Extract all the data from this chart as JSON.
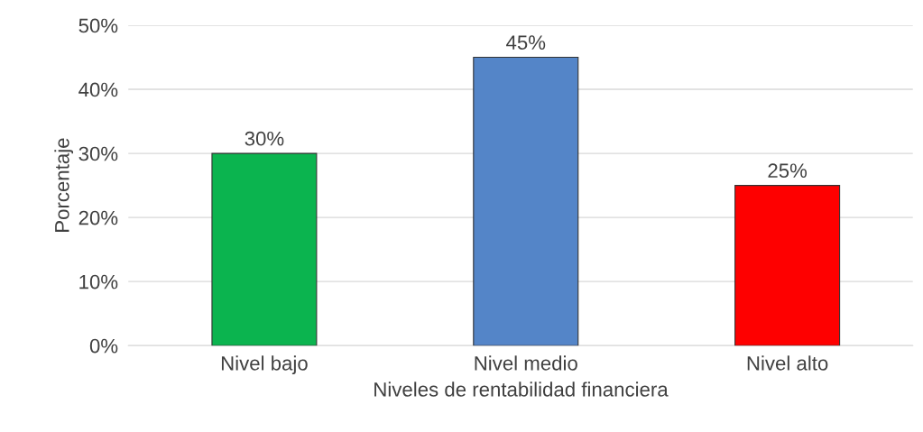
{
  "chart_data": {
    "type": "bar",
    "xlabel": "Niveles de rentabilidad financiera",
    "ylabel": "Porcentaje",
    "categories": [
      "Nivel bajo",
      "Nivel medio",
      "Nivel alto"
    ],
    "values": [
      30,
      45,
      25
    ],
    "colors": [
      "#0bb44f",
      "#5485c8",
      "#fe0000"
    ],
    "value_labels": [
      "30%",
      "45%",
      "25%"
    ],
    "ylim": [
      0,
      50
    ],
    "yticks": [
      {
        "value": 0,
        "label": "0%"
      },
      {
        "value": 10,
        "label": "10%"
      },
      {
        "value": 20,
        "label": "20%"
      },
      {
        "value": 30,
        "label": "30%"
      },
      {
        "value": 40,
        "label": "40%"
      },
      {
        "value": 50,
        "label": "50%"
      }
    ],
    "grid": "y",
    "legend": false
  }
}
